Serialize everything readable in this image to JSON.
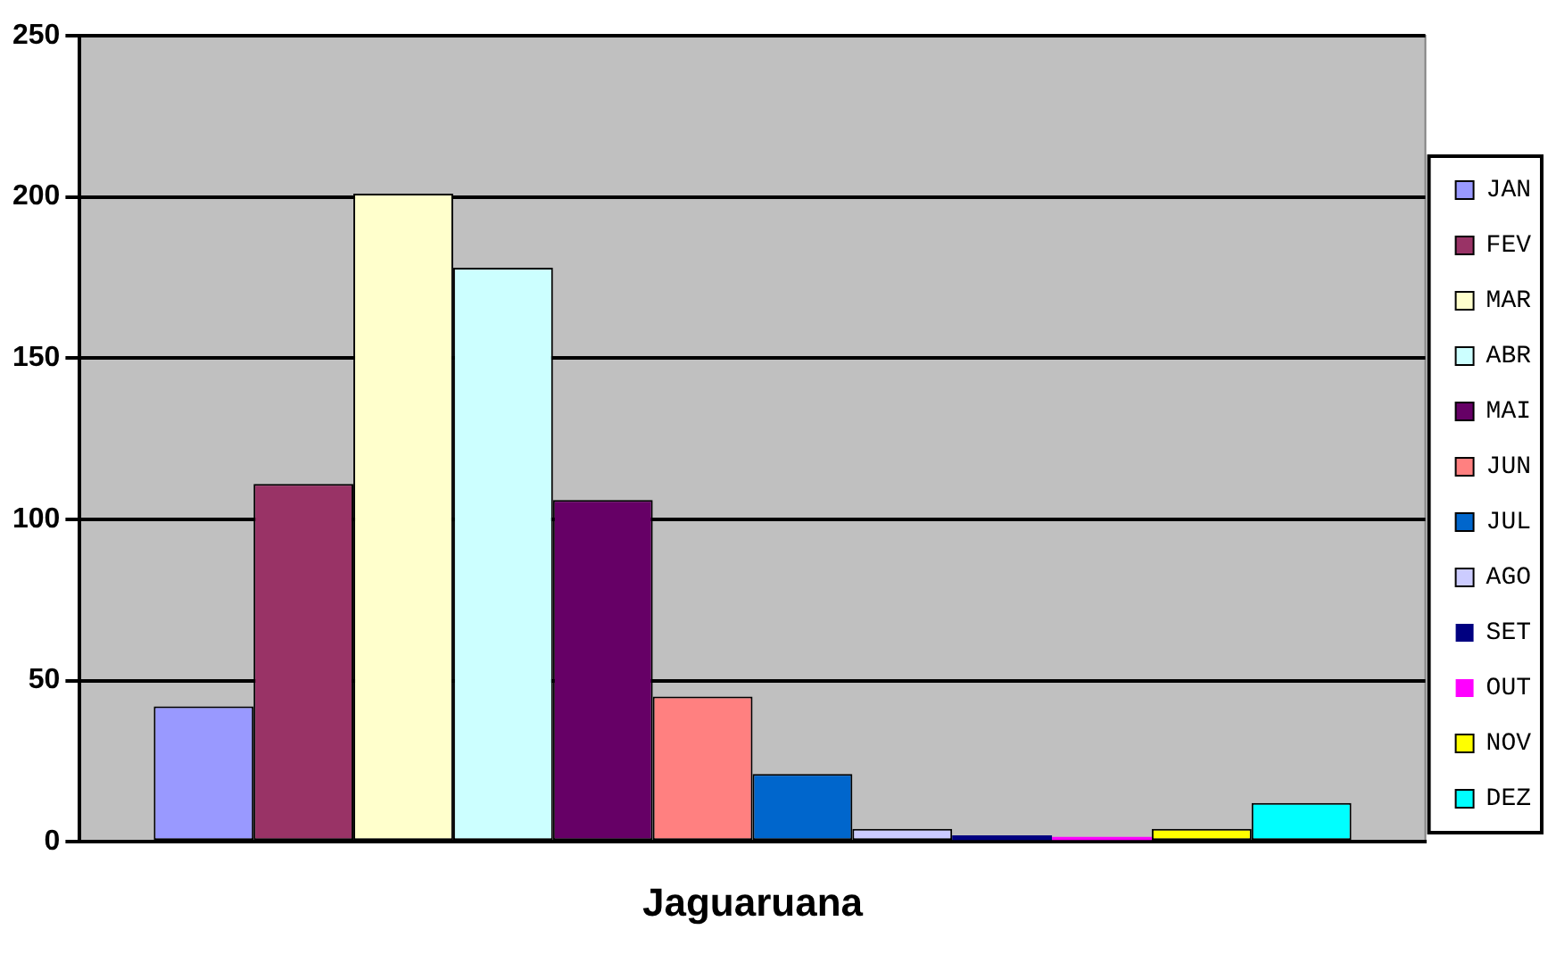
{
  "chart_data": {
    "type": "bar",
    "categories": [
      "Jaguaruana"
    ],
    "series": [
      {
        "name": "JAN",
        "color": "#9999ff",
        "values": [
          42
        ]
      },
      {
        "name": "FEV",
        "color": "#993366",
        "values": [
          111
        ]
      },
      {
        "name": "MAR",
        "color": "#ffffcc",
        "values": [
          201
        ]
      },
      {
        "name": "ABR",
        "color": "#ccffff",
        "values": [
          178
        ]
      },
      {
        "name": "MAI",
        "color": "#660066",
        "values": [
          106
        ]
      },
      {
        "name": "JUN",
        "color": "#ff8080",
        "values": [
          45
        ]
      },
      {
        "name": "JUL",
        "color": "#0066cc",
        "values": [
          21
        ]
      },
      {
        "name": "AGO",
        "color": "#ccccff",
        "values": [
          4
        ]
      },
      {
        "name": "SET",
        "color": "#000080",
        "values": [
          2
        ]
      },
      {
        "name": "OUT",
        "color": "#ff00ff",
        "values": [
          1.5
        ]
      },
      {
        "name": "NOV",
        "color": "#ffff00",
        "values": [
          4
        ]
      },
      {
        "name": "DEZ",
        "color": "#00ffff",
        "values": [
          12
        ]
      }
    ],
    "ylim": [
      0,
      250
    ],
    "yticks": [
      0,
      50,
      100,
      150,
      200,
      250
    ],
    "grid": "y",
    "legend": "right"
  }
}
